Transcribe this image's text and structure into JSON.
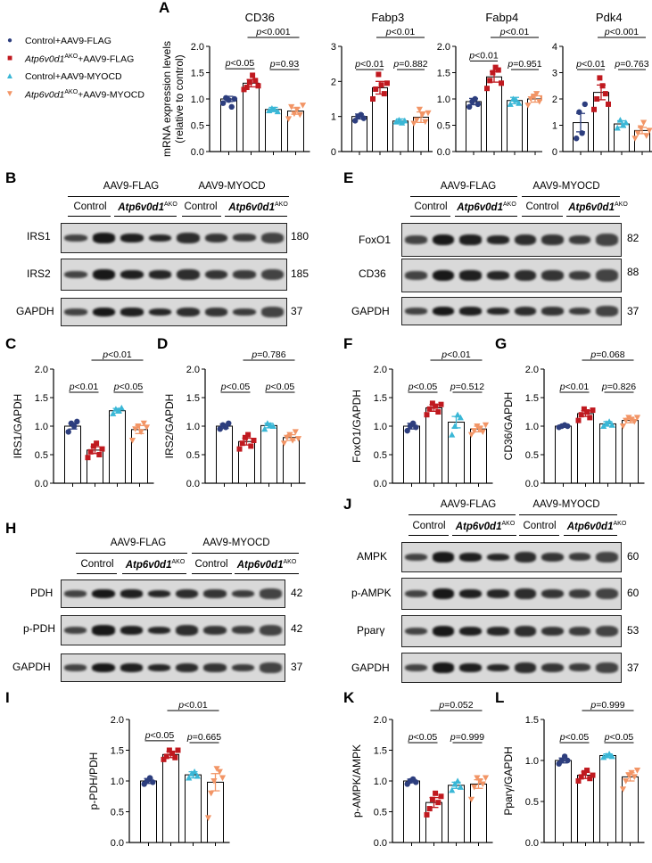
{
  "panel_letters": [
    "A",
    "B",
    "C",
    "D",
    "E",
    "F",
    "G",
    "H",
    "I",
    "J",
    "K",
    "L"
  ],
  "legend": [
    {
      "text": "Control+AAV9-FLAG",
      "marker": "circle",
      "color": "#2d3e7e"
    },
    {
      "text_italic": "Atp6v0d1",
      "sup": "AKO",
      "text_rest": "+AAV9-FLAG",
      "marker": "square",
      "color": "#c0191f"
    },
    {
      "text": "Control+AAV9-MYOCD",
      "marker": "triangle",
      "color": "#3ab7d6"
    },
    {
      "text_italic": "Atp6v0d1",
      "sup": "AKO",
      "text_rest": "+AAV9-MYOCD",
      "marker": "triangle-down",
      "color": "#f29566"
    }
  ],
  "colors": {
    "g1": "#2d3e7e",
    "g2": "#c0191f",
    "g3": "#3ab7d6",
    "g4": "#f29566"
  },
  "blot_headers": {
    "flag": "AAV9-FLAG",
    "myocd": "AAV9-MYOCD",
    "control": "Control",
    "ko_italic": "Atp6v0d1",
    "ko_sup": "AKO"
  },
  "blots": {
    "B": [
      {
        "label": "IRS1",
        "mw": "180"
      },
      {
        "label": "IRS2",
        "mw": "185"
      },
      {
        "label": "GAPDH",
        "mw": "37"
      }
    ],
    "E": [
      {
        "label": "FoxO1",
        "mw": "82"
      },
      {
        "label": "CD36",
        "mw": "88"
      },
      {
        "label": "GAPDH",
        "mw": "37"
      }
    ],
    "H": [
      {
        "label": "PDH",
        "mw": "42"
      },
      {
        "label": "p-PDH",
        "mw": "42"
      },
      {
        "label": "GAPDH",
        "mw": "37"
      }
    ],
    "J": [
      {
        "label": "AMPK",
        "mw": "60"
      },
      {
        "label": "p-AMPK",
        "mw": "60"
      },
      {
        "label": "Pparγ",
        "mw": "53"
      },
      {
        "label": "GAPDH",
        "mw": "37"
      }
    ]
  },
  "chart_data": [
    {
      "id": "A1",
      "type": "bar",
      "title": "CD36",
      "ylabel": "mRNA expression levels\n(relative to control)",
      "ylim": [
        0,
        2.0
      ],
      "yticks": [
        "0.0",
        "0.5",
        "1.0",
        "1.5",
        "2.0"
      ],
      "values": [
        1.0,
        1.3,
        0.8,
        0.77
      ],
      "errors": [
        0.05,
        0.07,
        0.04,
        0.06
      ],
      "points": [
        [
          0.92,
          1.02,
          0.98,
          0.85,
          1.0
        ],
        [
          1.18,
          1.22,
          1.32,
          1.45,
          1.35,
          1.25
        ],
        [
          0.78,
          0.82,
          0.8,
          0.76
        ],
        [
          0.62,
          0.85,
          0.72,
          0.8,
          0.7,
          0.88
        ]
      ],
      "annotations": [
        {
          "text": "p<0.05",
          "pair": [
            0,
            1
          ],
          "level": 1
        },
        {
          "text": "p=0.93",
          "pair": [
            2,
            3
          ],
          "level": 1
        },
        {
          "text": "p<0.001",
          "pair": [
            1,
            3
          ],
          "level": 2
        }
      ]
    },
    {
      "id": "A2",
      "type": "bar",
      "title": "Fabp3",
      "ylim": [
        0,
        3
      ],
      "yticks": [
        "0",
        "1",
        "2",
        "3"
      ],
      "values": [
        1.0,
        1.82,
        0.87,
        0.98
      ],
      "errors": [
        0.07,
        0.18,
        0.06,
        0.15
      ],
      "points": [
        [
          0.88,
          1.0,
          1.05,
          0.95
        ],
        [
          1.5,
          1.78,
          2.2,
          1.9,
          1.65,
          1.95
        ],
        [
          0.85,
          0.9,
          0.82,
          0.88
        ],
        [
          0.8,
          0.9,
          1.2,
          1.05,
          0.85,
          1.1
        ]
      ],
      "annotations": [
        {
          "text": "p<0.01",
          "pair": [
            0,
            1
          ],
          "level": 1
        },
        {
          "text": "p=0.882",
          "pair": [
            2,
            3
          ],
          "level": 1
        },
        {
          "text": "p<0.01",
          "pair": [
            1,
            3
          ],
          "level": 2
        }
      ]
    },
    {
      "id": "A3",
      "type": "bar",
      "title": "Fabp4",
      "ylim": [
        0,
        2.0
      ],
      "yticks": [
        "0.0",
        "0.5",
        "1.0",
        "1.5",
        "2.0"
      ],
      "values": [
        0.95,
        1.42,
        0.97,
        1.0
      ],
      "errors": [
        0.06,
        0.1,
        0.06,
        0.06
      ],
      "points": [
        [
          0.85,
          0.95,
          1.0,
          0.9
        ],
        [
          1.2,
          1.35,
          1.5,
          1.6,
          1.55,
          1.3
        ],
        [
          0.9,
          1.0,
          0.98,
          0.92
        ],
        [
          0.88,
          1.0,
          1.05,
          1.1,
          0.95,
          1.02
        ]
      ],
      "annotations": [
        {
          "text": "p<0.01",
          "pair": [
            0,
            1
          ],
          "level": 1
        },
        {
          "text": "p=0.951",
          "pair": [
            2,
            3
          ],
          "level": 1
        },
        {
          "text": "p<0.01",
          "pair": [
            1,
            3
          ],
          "level": 2
        }
      ]
    },
    {
      "id": "A4",
      "type": "bar",
      "title": "Pdk4",
      "ylim": [
        0,
        4
      ],
      "yticks": [
        "0",
        "1",
        "2",
        "3",
        "4"
      ],
      "values": [
        1.1,
        2.25,
        1.05,
        0.8
      ],
      "errors": [
        0.35,
        0.28,
        0.12,
        0.12
      ],
      "points": [
        [
          0.5,
          1.5,
          0.7,
          1.8
        ],
        [
          1.6,
          2.0,
          2.8,
          2.5,
          2.2,
          1.8
        ],
        [
          0.9,
          1.2,
          1.0,
          1.1
        ],
        [
          0.5,
          0.7,
          0.9,
          1.1,
          0.6,
          0.8
        ]
      ],
      "annotations": [
        {
          "text": "p<0.01",
          "pair": [
            0,
            1
          ],
          "level": 1
        },
        {
          "text": "p=0.763",
          "pair": [
            2,
            3
          ],
          "level": 1
        },
        {
          "text": "p<0.001",
          "pair": [
            1,
            3
          ],
          "level": 2
        }
      ]
    },
    {
      "id": "C",
      "type": "bar",
      "ylabel": "IRS1/GAPDH",
      "ylim": [
        0,
        2.0
      ],
      "yticks": [
        "0.0",
        "0.5",
        "1.0",
        "1.5",
        "2.0"
      ],
      "values": [
        1.0,
        0.58,
        1.27,
        0.94
      ],
      "errors": [
        0.05,
        0.06,
        0.04,
        0.07
      ],
      "points": [
        [
          0.9,
          1.05,
          1.0,
          1.08
        ],
        [
          0.45,
          0.55,
          0.65,
          0.7,
          0.5,
          0.6
        ],
        [
          1.22,
          1.3,
          1.28,
          1.32
        ],
        [
          0.75,
          0.95,
          1.0,
          0.9,
          1.05,
          0.98
        ]
      ],
      "annotations": [
        {
          "text": "p<0.01",
          "pair": [
            0,
            1
          ],
          "level": 1
        },
        {
          "text": "p<0.05",
          "pair": [
            2,
            3
          ],
          "level": 1
        },
        {
          "text": "p<0.01",
          "pair": [
            1,
            3
          ],
          "level": 2
        }
      ]
    },
    {
      "id": "D",
      "type": "bar",
      "ylabel": "IRS2/GAPDH",
      "ylim": [
        0,
        2.0
      ],
      "yticks": [
        "0.0",
        "0.5",
        "1.0",
        "1.5",
        "2.0"
      ],
      "values": [
        1.0,
        0.73,
        1.01,
        0.8
      ],
      "errors": [
        0.04,
        0.06,
        0.04,
        0.05
      ],
      "points": [
        [
          0.95,
          1.02,
          0.98,
          1.05
        ],
        [
          0.6,
          0.7,
          0.8,
          0.85,
          0.65,
          0.75
        ],
        [
          0.95,
          1.05,
          1.02,
          1.0
        ],
        [
          0.7,
          0.8,
          0.85,
          0.75,
          0.9,
          0.78
        ]
      ],
      "annotations": [
        {
          "text": "p<0.05",
          "pair": [
            0,
            1
          ],
          "level": 1
        },
        {
          "text": "p<0.05",
          "pair": [
            2,
            3
          ],
          "level": 1
        },
        {
          "text": "p=0.786",
          "pair": [
            1,
            3
          ],
          "level": 2
        }
      ]
    },
    {
      "id": "F",
      "type": "bar",
      "ylabel": "FoxO1/GAPDH",
      "ylim": [
        0,
        2.0
      ],
      "yticks": [
        "0.0",
        "0.5",
        "1.0",
        "1.5",
        "2.0"
      ],
      "values": [
        1.0,
        1.32,
        1.07,
        0.95
      ],
      "errors": [
        0.05,
        0.06,
        0.1,
        0.05
      ],
      "points": [
        [
          0.92,
          1.0,
          1.05,
          0.98
        ],
        [
          1.2,
          1.3,
          1.4,
          1.35,
          1.25,
          1.38
        ],
        [
          0.85,
          1.0,
          1.2,
          1.15
        ],
        [
          0.85,
          0.92,
          1.0,
          0.95,
          0.9,
          1.02
        ]
      ],
      "annotations": [
        {
          "text": "p<0.05",
          "pair": [
            0,
            1
          ],
          "level": 1
        },
        {
          "text": "p=0.512",
          "pair": [
            2,
            3
          ],
          "level": 1
        },
        {
          "text": "p<0.01",
          "pair": [
            1,
            3
          ],
          "level": 2
        }
      ]
    },
    {
      "id": "G",
      "type": "bar",
      "ylabel": "CD36/GAPDH",
      "ylim": [
        0,
        2.0
      ],
      "yticks": [
        "0.0",
        "0.5",
        "1.0",
        "1.5",
        "2.0"
      ],
      "values": [
        1.0,
        1.22,
        1.04,
        1.1
      ],
      "errors": [
        0.02,
        0.05,
        0.04,
        0.04
      ],
      "points": [
        [
          0.98,
          1.0,
          1.02,
          1.0
        ],
        [
          1.1,
          1.2,
          1.3,
          1.25,
          1.15,
          1.28
        ],
        [
          1.0,
          1.05,
          1.08,
          1.02
        ],
        [
          1.0,
          1.1,
          1.15,
          1.12,
          1.08,
          1.15
        ]
      ],
      "annotations": [
        {
          "text": "p<0.01",
          "pair": [
            0,
            1
          ],
          "level": 1
        },
        {
          "text": "p=0.826",
          "pair": [
            2,
            3
          ],
          "level": 1
        },
        {
          "text": "p=0.068",
          "pair": [
            1,
            3
          ],
          "level": 2
        }
      ]
    },
    {
      "id": "I",
      "type": "bar",
      "ylabel": "p-PDH/PDH",
      "ylim": [
        0,
        2.0
      ],
      "yticks": [
        "0.0",
        "0.5",
        "1.0",
        "1.5",
        "2.0"
      ],
      "values": [
        1.0,
        1.43,
        1.1,
        0.98
      ],
      "errors": [
        0.04,
        0.05,
        0.05,
        0.14
      ],
      "points": [
        [
          0.95,
          1.0,
          1.05,
          0.98
        ],
        [
          1.35,
          1.4,
          1.5,
          1.45,
          1.38,
          1.5
        ],
        [
          1.05,
          1.12,
          1.15,
          1.08
        ],
        [
          0.4,
          0.8,
          1.0,
          1.2,
          1.15,
          1.05
        ]
      ],
      "annotations": [
        {
          "text": "p<0.05",
          "pair": [
            0,
            1
          ],
          "level": 1
        },
        {
          "text": "p=0.665",
          "pair": [
            2,
            3
          ],
          "level": 1
        },
        {
          "text": "p<0.01",
          "pair": [
            1,
            3
          ],
          "level": 2
        }
      ]
    },
    {
      "id": "K",
      "type": "bar",
      "ylabel": "p-AMPK/AMPK",
      "ylim": [
        0,
        2.0
      ],
      "yticks": [
        "0.0",
        "0.5",
        "1.0",
        "1.5",
        "2.0"
      ],
      "values": [
        1.0,
        0.65,
        0.93,
        0.95
      ],
      "errors": [
        0.03,
        0.08,
        0.05,
        0.07
      ],
      "points": [
        [
          0.95,
          1.0,
          1.03,
          0.98
        ],
        [
          0.45,
          0.55,
          0.7,
          0.8,
          0.65,
          0.75
        ],
        [
          0.85,
          0.95,
          1.0,
          0.9
        ],
        [
          0.7,
          0.9,
          1.05,
          1.0,
          0.95,
          1.05
        ]
      ],
      "annotations": [
        {
          "text": "p<0.05",
          "pair": [
            0,
            1
          ],
          "level": 1
        },
        {
          "text": "p=0.999",
          "pair": [
            2,
            3
          ],
          "level": 1
        },
        {
          "text": "p=0.052",
          "pair": [
            1,
            3
          ],
          "level": 2
        }
      ]
    },
    {
      "id": "L",
      "type": "bar",
      "ylabel": "Pparγ/GAPDH",
      "ylim": [
        0,
        1.5
      ],
      "yticks": [
        "0.0",
        "0.5",
        "1.0",
        "1.5"
      ],
      "values": [
        1.0,
        0.82,
        1.06,
        0.8
      ],
      "errors": [
        0.03,
        0.04,
        0.02,
        0.05
      ],
      "points": [
        [
          0.96,
          1.0,
          1.05,
          1.0
        ],
        [
          0.75,
          0.8,
          0.85,
          0.88,
          0.78,
          0.82
        ],
        [
          1.04,
          1.06,
          1.08,
          1.05
        ],
        [
          0.65,
          0.75,
          0.82,
          0.85,
          0.8,
          0.88
        ]
      ],
      "annotations": [
        {
          "text": "p<0.05",
          "pair": [
            0,
            1
          ],
          "level": 1
        },
        {
          "text": "p<0.05",
          "pair": [
            2,
            3
          ],
          "level": 1
        },
        {
          "text": "p=0.999",
          "pair": [
            1,
            3
          ],
          "level": 2
        }
      ]
    }
  ]
}
